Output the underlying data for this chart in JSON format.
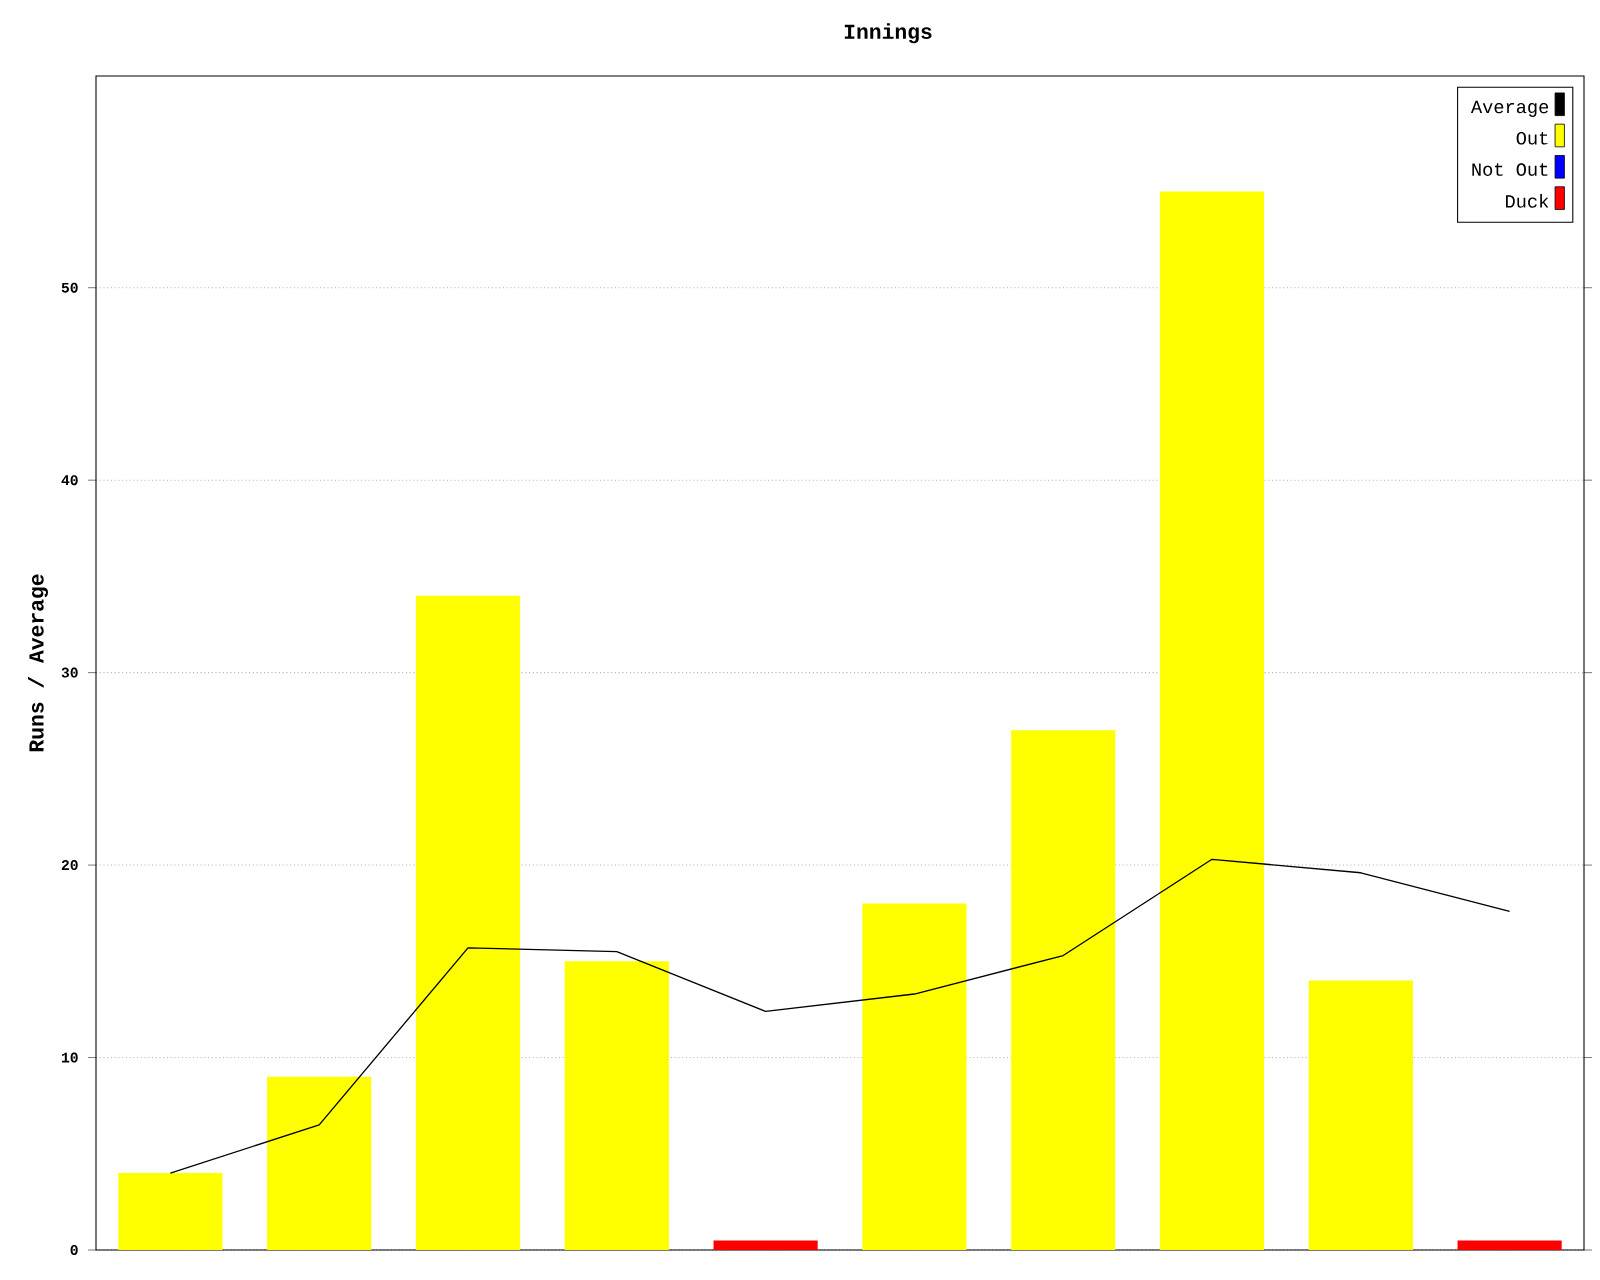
{
  "chart_data": {
    "type": "bar",
    "title": "Innings",
    "ylabel": "Runs / Average",
    "categories": [
      null,
      null,
      null,
      null,
      null,
      null,
      null,
      null,
      null,
      null
    ],
    "series": [
      {
        "name": "Average",
        "type": "line",
        "color": "#000000",
        "values": [
          4,
          6.5,
          15.7,
          15.5,
          12.4,
          13.3,
          15.3,
          20.3,
          19.6,
          17.6
        ]
      },
      {
        "name": "Out",
        "color": "#ffff00",
        "values": [
          4,
          9,
          34,
          15,
          null,
          18,
          27,
          55,
          14,
          null
        ]
      },
      {
        "name": "Not Out",
        "color": "#0000ff",
        "values": [
          null,
          null,
          null,
          null,
          null,
          null,
          null,
          null,
          null,
          null
        ]
      },
      {
        "name": "Duck",
        "color": "#ff0000",
        "values": [
          null,
          null,
          null,
          null,
          0.5,
          null,
          null,
          null,
          null,
          0.5
        ]
      }
    ],
    "ylim": [
      0,
      61
    ],
    "yticks": [
      0,
      10,
      20,
      30,
      40,
      50
    ],
    "grid": "y",
    "legend": "top right",
    "marker": "none",
    "line_style": "solid"
  }
}
